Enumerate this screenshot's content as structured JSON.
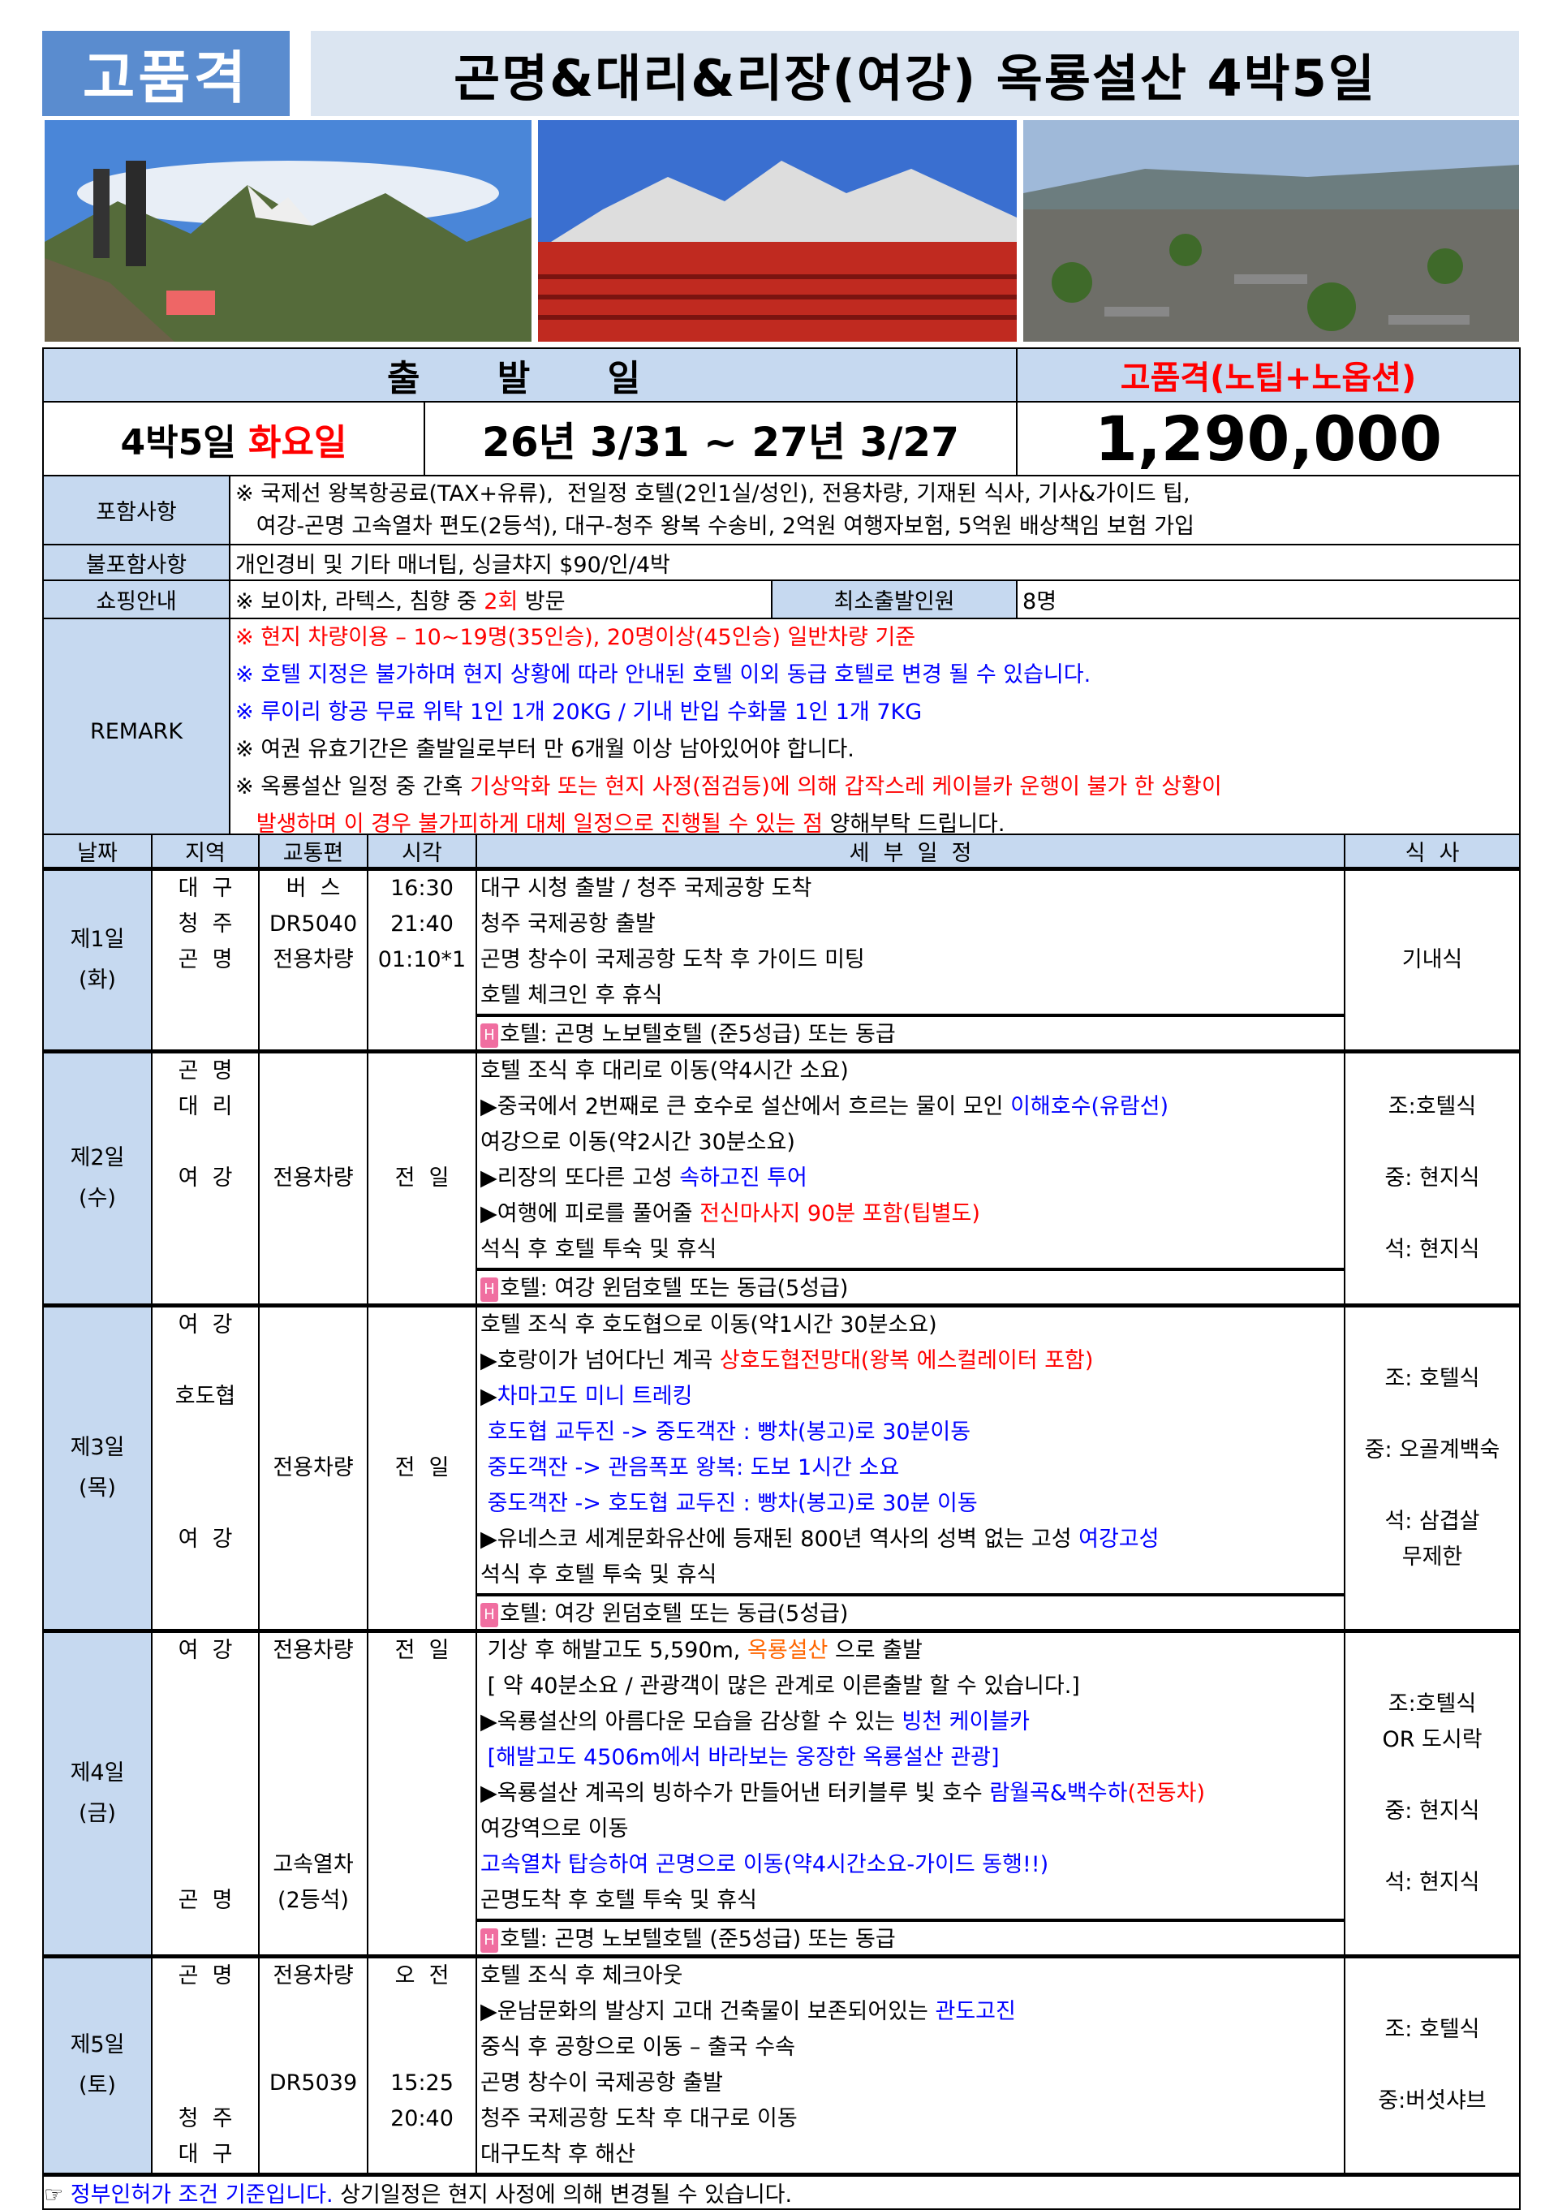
{
  "header": {
    "badge": "고품격",
    "title": "곤명&대리&리장(여강) 옥룡설산 4박5일"
  },
  "departure": {
    "header_label": "출  발  일",
    "grade_label": "고품격(노팁+노옵션)",
    "duration": "4박5일",
    "weekday": "화요일",
    "period": "26년 3/31 ~ 27년 3/27",
    "price": "1,290,000"
  },
  "included": {
    "label": "포함사항",
    "lines": [
      "※ 국제선 왕복항공료(TAX+유류),  전일정 호텔(2인1실/성인), 전용차량, 기재된 식사, 기사&가이드 팁,",
      "   여강-곤명 고속열차 편도(2등석), 대구-청주 왕복 수송비, 2억원 여행자보험, 5억원 배상책임 보험 가입"
    ]
  },
  "excluded": {
    "label": "불포함사항",
    "text": "개인경비 및 기타 매너팁, 싱글챠지 $90/인/4박"
  },
  "shopping": {
    "label": "쇼핑안내",
    "prefix": "※ 보이차, 라텍스, 침향 중 ",
    "count": "2회",
    "suffix": " 방문",
    "min_label": "최소출발인원",
    "min_value": "8명"
  },
  "remark": {
    "label": "REMARK",
    "lines": [
      [
        {
          "t": "※ 현지 차량이용 – 10~19명(35인승), 20명이상(45인승) 일반차량 기준",
          "c": "red"
        }
      ],
      [
        {
          "t": "※ 호텔 지정은 불가하며 현지 상황에 따라 안내된 호텔 이외 동급 호텔로 변경 될 수 있습니다.",
          "c": "blue"
        }
      ],
      [
        {
          "t": "※ 루이리 항공 무료 위탁 1인 1개 20KG / 기내 반입 수화물 1인 1개 7KG",
          "c": "blue"
        }
      ],
      [
        {
          "t": "※ 여권 유효기간은 출발일로부터 만 6개월 이상 남아있어야 합니다.",
          "c": ""
        }
      ],
      [
        {
          "t": "※ 옥룡설산 일정 중 간혹 ",
          "c": ""
        },
        {
          "t": "기상악화 또는 현지 사정(점검등)에 의해 갑작스레 케이블카 운행이 불가 한 상황이",
          "c": "red"
        }
      ],
      [
        {
          "t": "   발생하며 이 경우 불가피하게 대체 일정으로 진행될 수 있는 점 ",
          "c": "red"
        },
        {
          "t": "양해부탁 드립니다.",
          "c": ""
        }
      ]
    ]
  },
  "columns": [
    "날짜",
    "지역",
    "교통편",
    "시각",
    "세  부  일  정",
    "식  사"
  ],
  "days": [
    {
      "day": "제1일",
      "weekday": "(화)",
      "meals": [
        "기내식"
      ],
      "lines": [
        {
          "region": "대  구",
          "transport": "버  스",
          "time": "16:30",
          "seg": [
            {
              "t": "대구 시청 출발 / 청주 국제공항 도착",
              "c": ""
            }
          ]
        },
        {
          "region": "청  주",
          "transport": "DR5040",
          "time": "21:40",
          "seg": [
            {
              "t": "청주 국제공항 출발",
              "c": ""
            }
          ]
        },
        {
          "region": "곤  명",
          "transport": "전용차량",
          "time": "01:10*1",
          "seg": [
            {
              "t": "곤명 창수이 국제공항 도착 후 가이드 미팅",
              "c": ""
            }
          ]
        },
        {
          "region": "",
          "transport": "",
          "time": "",
          "seg": [
            {
              "t": "호텔 체크인 후 휴식",
              "c": ""
            }
          ]
        }
      ],
      "hotel": "호텔: 곤명 노보텔호텔 (준5성급) 또는 동급"
    },
    {
      "day": "제2일",
      "weekday": "(수)",
      "meals": [
        "조:호텔식",
        "",
        "중: 현지식",
        "",
        "석: 현지식"
      ],
      "lines": [
        {
          "region": "곤  명",
          "transport": "",
          "time": "",
          "seg": [
            {
              "t": "호텔 조식 후 대리로 이동(약4시간 소요)",
              "c": ""
            }
          ]
        },
        {
          "region": "대  리",
          "transport": "",
          "time": "",
          "seg": [
            {
              "t": "▶중국에서 2번째로 큰 호수로 설산에서 흐르는 물이 모인 ",
              "c": ""
            },
            {
              "t": "이해호수(유람선)",
              "c": "blue"
            }
          ]
        },
        {
          "region": "",
          "transport": "",
          "time": "",
          "seg": [
            {
              "t": "여강으로 이동(약2시간 30분소요)",
              "c": ""
            }
          ]
        },
        {
          "region": "여  강",
          "transport": "전용차량",
          "time": "전  일",
          "seg": [
            {
              "t": "▶리장의 또다른 고성 ",
              "c": ""
            },
            {
              "t": "속하고진 투어",
              "c": "blue"
            }
          ]
        },
        {
          "region": "",
          "transport": "",
          "time": "",
          "seg": [
            {
              "t": "▶여행에 피로를 풀어줄 ",
              "c": ""
            },
            {
              "t": "전신마사지 90분 포함(팁별도)",
              "c": "red"
            }
          ]
        },
        {
          "region": "",
          "transport": "",
          "time": "",
          "seg": [
            {
              "t": "석식 후 호텔 투숙 및 휴식",
              "c": ""
            }
          ]
        }
      ],
      "hotel": "호텔: 여강 윈덤호텔 또는 동급(5성급)"
    },
    {
      "day": "제3일",
      "weekday": "(목)",
      "meals": [
        "조: 호텔식",
        "",
        "중: 오골계백숙",
        "",
        "석: 삼겹살",
        "무제한"
      ],
      "lines": [
        {
          "region": "여  강",
          "transport": "",
          "time": "",
          "seg": [
            {
              "t": "호텔 조식 후 호도협으로 이동(약1시간 30분소요)",
              "c": ""
            }
          ]
        },
        {
          "region": "",
          "transport": "",
          "time": "",
          "seg": [
            {
              "t": "▶호랑이가 넘어다닌 계곡 ",
              "c": ""
            },
            {
              "t": "상호도협전망대(왕복 에스컬레이터 포함)",
              "c": "red"
            }
          ]
        },
        {
          "region": "호도협",
          "transport": "",
          "time": "",
          "seg": [
            {
              "t": "▶",
              "c": ""
            },
            {
              "t": "차마고도 미니 트레킹",
              "c": "blue"
            }
          ]
        },
        {
          "region": "",
          "transport": "",
          "time": "",
          "seg": [
            {
              "t": " 호도협 교두진 -> 중도객잔 : 빵차(봉고)로 30분이동",
              "c": "blue"
            }
          ]
        },
        {
          "region": "",
          "transport": "전용차량",
          "time": "전  일",
          "seg": [
            {
              "t": " 중도객잔 -> 관음폭포 왕복: 도보 1시간 소요",
              "c": "blue"
            }
          ]
        },
        {
          "region": "",
          "transport": "",
          "time": "",
          "seg": [
            {
              "t": " 중도객잔 -> 호도협 교두진 : 빵차(봉고)로 30분 이동",
              "c": "blue"
            }
          ]
        },
        {
          "region": "여  강",
          "transport": "",
          "time": "",
          "seg": [
            {
              "t": "▶유네스코 세계문화유산에 등재된 800년 역사의 성벽 없는 고성 ",
              "c": ""
            },
            {
              "t": "여강고성",
              "c": "blue"
            }
          ]
        },
        {
          "region": "",
          "transport": "",
          "time": "",
          "seg": [
            {
              "t": "석식 후 호텔 투숙 및 휴식",
              "c": ""
            }
          ]
        }
      ],
      "hotel": "호텔: 여강 윈덤호텔 또는 동급(5성급)"
    },
    {
      "day": "제4일",
      "weekday": "(금)",
      "meals": [
        "조:호텔식",
        "OR 도시락",
        "",
        "중: 현지식",
        "",
        "석: 현지식"
      ],
      "lines": [
        {
          "region": "여  강",
          "transport": "전용차량",
          "time": "전  일",
          "seg": [
            {
              "t": " 기상 후 해발고도 5,590m, ",
              "c": ""
            },
            {
              "t": "옥룡설산",
              "c": "orange"
            },
            {
              "t": " 으로 출발",
              "c": ""
            }
          ]
        },
        {
          "region": "",
          "transport": "",
          "time": "",
          "seg": [
            {
              "t": " [ 약 40분소요 / 관광객이 많은 관계로 이른출발 할 수 있습니다.]",
              "c": ""
            }
          ]
        },
        {
          "region": "",
          "transport": "",
          "time": "",
          "seg": [
            {
              "t": "▶옥룡설산의 아름다운 모습을 감상할 수 있는 ",
              "c": ""
            },
            {
              "t": "빙천 케이블카",
              "c": "blue"
            }
          ]
        },
        {
          "region": "",
          "transport": "",
          "time": "",
          "seg": [
            {
              "t": " [해발고도 4506m에서 바라보는 웅장한 옥룡설산 관광]",
              "c": "blue"
            }
          ]
        },
        {
          "region": "",
          "transport": "",
          "time": "",
          "seg": [
            {
              "t": "▶옥룡설산 계곡의 빙하수가 만들어낸 터키블루 빛 호수 ",
              "c": ""
            },
            {
              "t": "람월곡&백수하",
              "c": "blue"
            },
            {
              "t": "(전동차)",
              "c": "red"
            }
          ]
        },
        {
          "region": "",
          "transport": "",
          "time": "",
          "seg": [
            {
              "t": "여강역으로 이동",
              "c": ""
            }
          ]
        },
        {
          "region": "",
          "transport": "고속열차",
          "time": "",
          "seg": [
            {
              "t": "고속열차 탑승하여 곤명으로 이동(약4시간소요-가이드 동행!!)",
              "c": "blue"
            }
          ]
        },
        {
          "region": "곤  명",
          "transport": "(2등석)",
          "time": "",
          "seg": [
            {
              "t": "곤명도착 후 호텔 투숙 및 휴식",
              "c": ""
            }
          ]
        }
      ],
      "hotel": "호텔: 곤명 노보텔호텔 (준5성급) 또는 동급"
    },
    {
      "day": "제5일",
      "weekday": "(토)",
      "meals": [
        "조: 호텔식",
        "",
        "중:버섯샤브"
      ],
      "lines": [
        {
          "region": "곤  명",
          "transport": "전용차량",
          "time": "오  전",
          "seg": [
            {
              "t": "호텔 조식 후 체크아웃",
              "c": ""
            }
          ]
        },
        {
          "region": "",
          "transport": "",
          "time": "",
          "seg": [
            {
              "t": "▶운남문화의 발상지 고대 건축물이 보존되어있는 ",
              "c": ""
            },
            {
              "t": "관도고진",
              "c": "blue"
            }
          ]
        },
        {
          "region": "",
          "transport": "",
          "time": "",
          "seg": [
            {
              "t": "중식 후 공항으로 이동 – 출국 수속",
              "c": ""
            }
          ]
        },
        {
          "region": "",
          "transport": "DR5039",
          "time": "15:25",
          "seg": [
            {
              "t": "곤명 창수이 국제공항 출발",
              "c": ""
            }
          ]
        },
        {
          "region": "청  주",
          "transport": "",
          "time": "20:40",
          "seg": [
            {
              "t": "청주 국제공항 도착 후 대구로 이동",
              "c": ""
            }
          ]
        },
        {
          "region": "대  구",
          "transport": "",
          "time": "",
          "seg": [
            {
              "t": "대구도착 후 해산",
              "c": ""
            }
          ]
        }
      ],
      "hotel": null
    }
  ],
  "footer": {
    "icon": "pointing-hand-icon",
    "blue": "정부인허가 조건 기준입니다.",
    "black": " 상기일정은 현지 사정에 의해 변경될 수 있습니다."
  },
  "hotel_icon_letter": "H",
  "photos": [
    "trekkers-mountain-photo",
    "snow-mountain-stage-photo",
    "old-town-rooftops-photo"
  ]
}
